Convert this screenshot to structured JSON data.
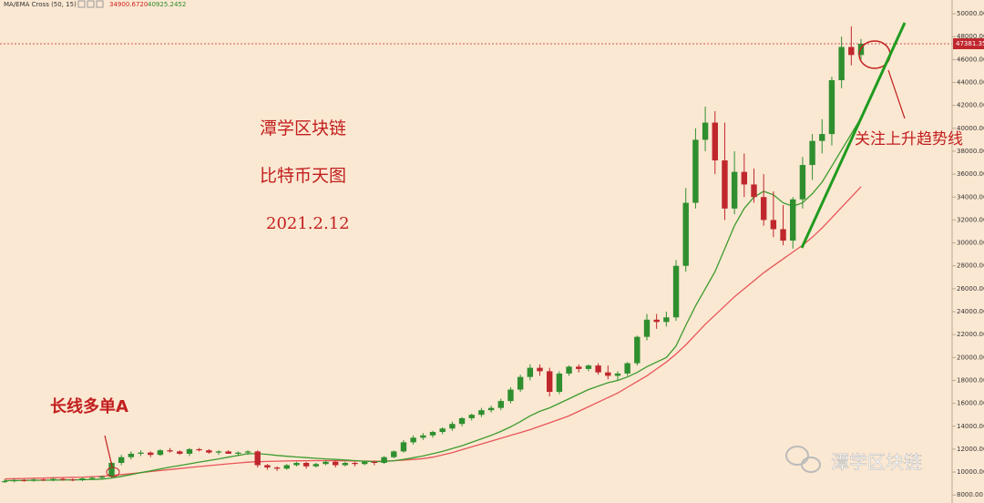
{
  "chart_data": {
    "type": "candlestick",
    "ylim": [
      7300,
      51200
    ],
    "yticks": [
      {
        "value": 8000,
        "label": "8000.00"
      },
      {
        "value": 10000,
        "label": "10000.00"
      },
      {
        "value": 12000,
        "label": "12000.00"
      },
      {
        "value": 14000,
        "label": "14000.00"
      },
      {
        "value": 16000,
        "label": "16000.00"
      },
      {
        "value": 18000,
        "label": "18000.00"
      },
      {
        "value": 20000,
        "label": "20000.00"
      },
      {
        "value": 22000,
        "label": "22000.00"
      },
      {
        "value": 24000,
        "label": "24000.00"
      },
      {
        "value": 26000,
        "label": "26000.00"
      },
      {
        "value": 28000,
        "label": "28000.00"
      },
      {
        "value": 30000,
        "label": "30000.00"
      },
      {
        "value": 32000,
        "label": "32000.00"
      },
      {
        "value": 34000,
        "label": "34000.00"
      },
      {
        "value": 36000,
        "label": "36000.00"
      },
      {
        "value": 38000,
        "label": "38000.00"
      },
      {
        "value": 40000,
        "label": "40000.00"
      },
      {
        "value": 42000,
        "label": "42000.00"
      },
      {
        "value": 44000,
        "label": "44000.00"
      },
      {
        "value": 46000,
        "label": "46000.00"
      },
      {
        "value": 48000,
        "label": "48000.00"
      },
      {
        "value": 50000,
        "label": "50000.00"
      }
    ],
    "up_color": "#2f8f2f",
    "down_color": "#c0272d",
    "open": [
      9150,
      9200,
      9300,
      9250,
      9350,
      9300,
      9400,
      9350,
      9300,
      9450,
      9500,
      9600,
      10800,
      11300,
      11600,
      11700,
      11500,
      11900,
      11800,
      11600,
      12000,
      11900,
      11700,
      11800,
      11600,
      11700,
      11800,
      10600,
      10400,
      10300,
      10600,
      10800,
      10500,
      10700,
      10900,
      10600,
      10800,
      10700,
      10900,
      10800,
      11300,
      11800,
      12600,
      13000,
      13200,
      13500,
      13800,
      14200,
      14700,
      15000,
      15400,
      15600,
      16200,
      17200,
      18300,
      19100,
      18800,
      17000,
      18600,
      19200,
      19000,
      19300,
      18700,
      18400,
      18600,
      19500,
      21800,
      23300,
      23100,
      23500,
      28000,
      33500,
      39000,
      40500,
      37200,
      33000,
      36200,
      35100,
      34000,
      32000,
      31200,
      30200,
      33800,
      36800,
      38900,
      39500,
      44200,
      47100,
      46400
    ],
    "high": [
      9350,
      9400,
      9400,
      9450,
      9450,
      9500,
      9500,
      9450,
      9550,
      9600,
      9700,
      10900,
      11500,
      11800,
      11900,
      11800,
      12000,
      12100,
      11900,
      12100,
      12100,
      12000,
      11900,
      11900,
      11800,
      11900,
      11900,
      10700,
      10500,
      10700,
      10900,
      10900,
      10800,
      11000,
      11000,
      10900,
      10900,
      11000,
      11000,
      11400,
      11900,
      12800,
      13200,
      13400,
      13600,
      13900,
      14400,
      14800,
      15100,
      15600,
      15800,
      16400,
      17400,
      18500,
      19400,
      19400,
      19100,
      18800,
      19300,
      19400,
      19400,
      19500,
      19300,
      18800,
      19600,
      21900,
      23800,
      23800,
      24000,
      28500,
      34800,
      40000,
      41900,
      41500,
      40500,
      38000,
      37800,
      36500,
      36000,
      34500,
      33300,
      34000,
      37500,
      39500,
      40800,
      44500,
      48000,
      48900,
      47800
    ],
    "low": [
      9050,
      9100,
      9150,
      9150,
      9200,
      9200,
      9250,
      9200,
      9200,
      9350,
      9400,
      9500,
      10600,
      11100,
      11400,
      11300,
      11400,
      11700,
      11500,
      11400,
      11800,
      11600,
      11500,
      11600,
      11400,
      11500,
      10400,
      10200,
      10100,
      10200,
      10500,
      10300,
      10400,
      10600,
      10400,
      10500,
      10500,
      10600,
      10600,
      10700,
      11200,
      11700,
      12400,
      12800,
      13000,
      13300,
      13600,
      14000,
      14500,
      14800,
      15200,
      15400,
      16000,
      17000,
      18000,
      18400,
      16600,
      16800,
      18400,
      18700,
      18800,
      18500,
      18100,
      18000,
      18400,
      19300,
      21500,
      22500,
      22700,
      23200,
      27500,
      33000,
      38000,
      36000,
      32000,
      32500,
      34000,
      33500,
      31500,
      30500,
      29800,
      29500,
      33000,
      35500,
      37800,
      38500,
      43500,
      45500,
      46000
    ],
    "close": [
      9200,
      9300,
      9250,
      9350,
      9300,
      9400,
      9350,
      9300,
      9450,
      9500,
      9600,
      10800,
      11300,
      11600,
      11700,
      11500,
      11900,
      11800,
      11600,
      12000,
      11900,
      11700,
      11800,
      11600,
      11700,
      11800,
      10600,
      10400,
      10300,
      10600,
      10800,
      10500,
      10700,
      10900,
      10600,
      10800,
      10700,
      10900,
      10800,
      11300,
      11800,
      12600,
      13000,
      13200,
      13500,
      13800,
      14200,
      14700,
      15000,
      15400,
      15600,
      16200,
      17200,
      18300,
      19100,
      18800,
      17000,
      18600,
      19200,
      19000,
      19300,
      18700,
      18400,
      18600,
      19500,
      21800,
      23300,
      23100,
      23500,
      28000,
      33500,
      39000,
      40500,
      37200,
      33000,
      36200,
      35100,
      34000,
      32000,
      31200,
      30200,
      33800,
      36800,
      38900,
      39500,
      44200,
      47100,
      46400,
      47381.35
    ],
    "indicator": {
      "name": "MA/EMA Cross (50, 15)",
      "series": [
        {
          "color": "#e8555a",
          "value_label": "34900.6720",
          "values": [
            9400,
            9420,
            9440,
            9460,
            9480,
            9500,
            9520,
            9540,
            9560,
            9600,
            9640,
            9700,
            9780,
            9860,
            9950,
            10040,
            10130,
            10220,
            10310,
            10400,
            10480,
            10560,
            10640,
            10720,
            10790,
            10860,
            10900,
            10930,
            10950,
            10970,
            10980,
            10990,
            11000,
            11000,
            10990,
            10980,
            10970,
            10960,
            10950,
            10960,
            10990,
            11040,
            11100,
            11170,
            11300,
            11500,
            11700,
            11950,
            12200,
            12450,
            12700,
            12950,
            13200,
            13450,
            13700,
            14000,
            14300,
            14600,
            14900,
            15300,
            15700,
            16100,
            16500,
            16900,
            17400,
            17900,
            18400,
            19000,
            19600,
            20300,
            21100,
            22000,
            22900,
            23700,
            24500,
            25300,
            26000,
            26700,
            27400,
            28000,
            28600,
            29200,
            29800,
            30500,
            31300,
            32200,
            33100,
            34000,
            34900.672
          ]
        },
        {
          "color": "#3c9b2e",
          "value_label": "40925.2452",
          "values": [
            9250,
            9260,
            9270,
            9280,
            9290,
            9300,
            9310,
            9320,
            9330,
            9350,
            9380,
            9480,
            9620,
            9780,
            9950,
            10100,
            10270,
            10430,
            10570,
            10720,
            10870,
            11010,
            11150,
            11300,
            11450,
            11600,
            11600,
            11550,
            11450,
            11380,
            11320,
            11260,
            11200,
            11150,
            11100,
            11050,
            11000,
            10950,
            10900,
            10930,
            10990,
            11100,
            11250,
            11400,
            11600,
            11800,
            12050,
            12300,
            12600,
            12900,
            13200,
            13550,
            13950,
            14400,
            14900,
            15300,
            15600,
            16000,
            16400,
            16800,
            17200,
            17500,
            17800,
            18000,
            18300,
            18700,
            19200,
            19600,
            20000,
            21000,
            22800,
            24500,
            26000,
            27500,
            29500,
            31500,
            33000,
            34000,
            34500,
            34200,
            33500,
            33200,
            33500,
            34300,
            35300,
            36700,
            38100,
            39500,
            40925.2452
          ]
        }
      ]
    },
    "annotations": {
      "title": "潭学区块链",
      "subtitle": "比特币天图",
      "date": "2021.2.12",
      "entry": "长线多单A",
      "trend": "关注上升趋势线"
    },
    "watermark": "潭学区块链"
  }
}
